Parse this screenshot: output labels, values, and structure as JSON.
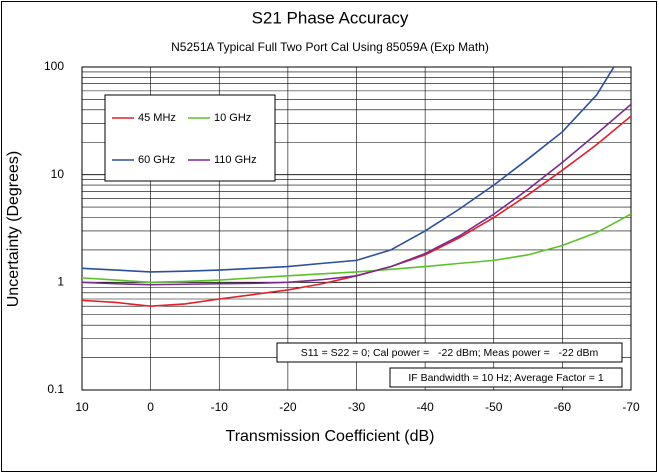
{
  "chart_data": {
    "type": "line",
    "title": "S21 Phase Accuracy",
    "subtitle": "N5251A Typical Full Two Port Cal Using 85059A (Exp Math)",
    "xlabel": "Transmission Coefficient (dB)",
    "ylabel": "Uncertainty (Degrees)",
    "x": [
      10,
      5,
      0,
      -5,
      -10,
      -15,
      -20,
      -25,
      -30,
      -35,
      -40,
      -45,
      -50,
      -55,
      -60,
      -65,
      -70
    ],
    "xlim": [
      10,
      -70
    ],
    "xticks": [
      10,
      0,
      -10,
      -20,
      -30,
      -40,
      -50,
      -60,
      -70
    ],
    "ylim": [
      0.1,
      100
    ],
    "yticks": [
      0.1,
      1,
      10,
      100
    ],
    "y_minor_ticks": [
      0.2,
      0.3,
      0.4,
      0.5,
      0.6,
      0.7,
      0.8,
      0.9,
      2,
      3,
      4,
      5,
      6,
      7,
      8,
      9,
      20,
      30,
      40,
      50,
      60,
      70,
      80,
      90
    ],
    "log_y": true,
    "grid": true,
    "series": [
      {
        "name": "45 MHz",
        "color": "#e0202a",
        "values": [
          0.68,
          0.65,
          0.6,
          0.63,
          0.7,
          0.77,
          0.85,
          0.97,
          1.15,
          1.4,
          1.8,
          2.6,
          4,
          6.5,
          11,
          19,
          35
        ]
      },
      {
        "name": "10 GHz",
        "color": "#5cc02c",
        "values": [
          1.1,
          1.05,
          1.0,
          1.02,
          1.05,
          1.1,
          1.15,
          1.2,
          1.25,
          1.32,
          1.4,
          1.5,
          1.6,
          1.8,
          2.2,
          2.9,
          4.3
        ]
      },
      {
        "name": "60 GHz",
        "color": "#2a4f9c",
        "x": [
          10,
          5,
          0,
          -5,
          -10,
          -15,
          -20,
          -25,
          -30,
          -35,
          -40,
          -45,
          -50,
          -55,
          -60,
          -65,
          -67.5
        ],
        "values": [
          1.35,
          1.3,
          1.25,
          1.27,
          1.3,
          1.35,
          1.4,
          1.5,
          1.6,
          2.0,
          3.0,
          4.8,
          8,
          14,
          25,
          55,
          100
        ]
      },
      {
        "name": "110 GHz",
        "color": "#7a2a8c",
        "values": [
          1.0,
          0.97,
          0.95,
          0.96,
          0.97,
          0.98,
          1.0,
          1.06,
          1.15,
          1.4,
          1.85,
          2.7,
          4.3,
          7.3,
          13,
          24,
          45
        ]
      }
    ],
    "annotations": [
      "S11 = S22 = 0; Cal power =   -22 dBm; Meas power =   -22 dBm",
      "IF Bandwidth = 10 Hz; Average Factor = 1"
    ]
  }
}
